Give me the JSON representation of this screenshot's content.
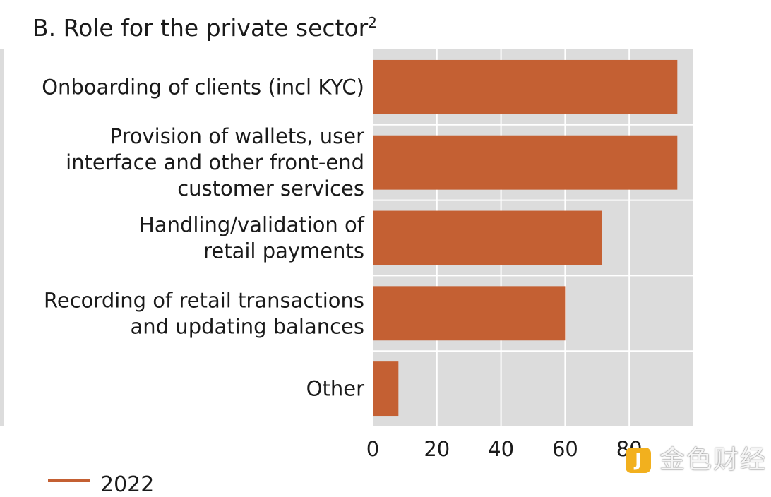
{
  "chart_data": {
    "type": "bar",
    "orientation": "horizontal",
    "title": "B. Role for the private sector",
    "title_footnote": "2",
    "categories": [
      [
        "Onboarding of clients (incl KYC)"
      ],
      [
        "Provision of wallets, user",
        "interface and other front-end",
        "customer services"
      ],
      [
        "Handling/validation of",
        "retail payments"
      ],
      [
        "Recording of retail transactions",
        "and updating balances"
      ],
      [
        "Other"
      ]
    ],
    "series": [
      {
        "name": "2022",
        "values": [
          95,
          95,
          71.5,
          60,
          8
        ]
      }
    ],
    "xlim": [
      0,
      100
    ],
    "xticks": [
      "0",
      "20",
      "40",
      "60",
      "80"
    ],
    "grid": true,
    "legend_position": "bottom-left",
    "colors": {
      "bar": "#c46033",
      "plot_background": "#dcdcdc",
      "gridline": "#ffffff"
    }
  },
  "watermark": {
    "icon": "jinse-logo-icon",
    "badge": "J",
    "text": "金色财经"
  }
}
